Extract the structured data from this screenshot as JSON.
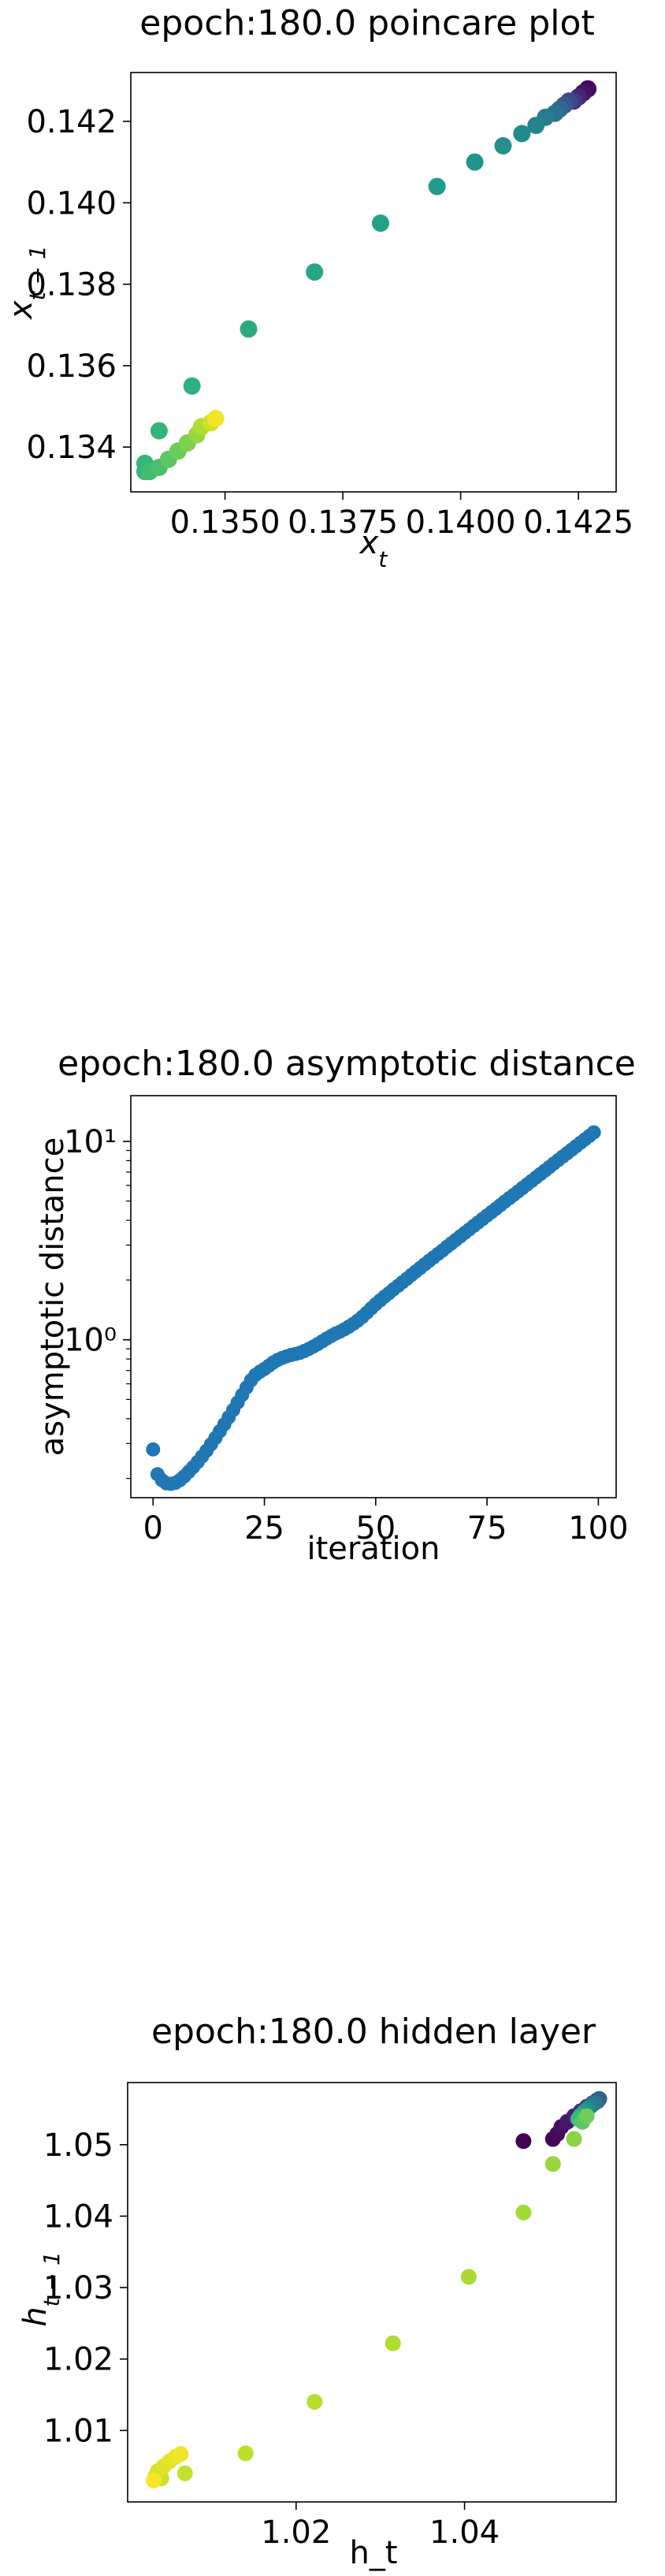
{
  "chart_data": [
    {
      "type": "scatter",
      "title": "epoch:180.0 poincare plot",
      "xlabel": "x_t",
      "ylabel": "x_{t-1}",
      "xlim": [
        0.133,
        0.1433
      ],
      "ylim": [
        0.1329,
        0.1432
      ],
      "xticks": [
        0.135,
        0.1375,
        0.14,
        0.1425
      ],
      "xtick_labels": [
        "0.1350",
        "0.1375",
        "0.1400",
        "0.1425"
      ],
      "yticks": [
        0.134,
        0.136,
        0.138,
        0.14,
        0.142
      ],
      "ytick_labels": [
        "0.134",
        "0.136",
        "0.138",
        "0.140",
        "0.142"
      ],
      "colormap": "viridis",
      "points": [
        {
          "x": 0.1427,
          "y": 0.1428,
          "c": 0.02
        },
        {
          "x": 0.1426,
          "y": 0.1427,
          "c": 0.05
        },
        {
          "x": 0.1425,
          "y": 0.1426,
          "c": 0.1
        },
        {
          "x": 0.1424,
          "y": 0.1425,
          "c": 0.16
        },
        {
          "x": 0.1423,
          "y": 0.1425,
          "c": 0.22
        },
        {
          "x": 0.1422,
          "y": 0.1424,
          "c": 0.28
        },
        {
          "x": 0.1421,
          "y": 0.1423,
          "c": 0.33
        },
        {
          "x": 0.142,
          "y": 0.1422,
          "c": 0.38
        },
        {
          "x": 0.1418,
          "y": 0.1421,
          "c": 0.42
        },
        {
          "x": 0.1416,
          "y": 0.1419,
          "c": 0.45
        },
        {
          "x": 0.1413,
          "y": 0.1417,
          "c": 0.48
        },
        {
          "x": 0.1409,
          "y": 0.1414,
          "c": 0.5
        },
        {
          "x": 0.1403,
          "y": 0.141,
          "c": 0.52
        },
        {
          "x": 0.1395,
          "y": 0.1404,
          "c": 0.55
        },
        {
          "x": 0.1383,
          "y": 0.1395,
          "c": 0.57
        },
        {
          "x": 0.1369,
          "y": 0.1383,
          "c": 0.59
        },
        {
          "x": 0.1355,
          "y": 0.1369,
          "c": 0.61
        },
        {
          "x": 0.1343,
          "y": 0.1355,
          "c": 0.63
        },
        {
          "x": 0.1336,
          "y": 0.1344,
          "c": 0.65
        },
        {
          "x": 0.1333,
          "y": 0.1336,
          "c": 0.66
        },
        {
          "x": 0.1333,
          "y": 0.1334,
          "c": 0.67
        },
        {
          "x": 0.1334,
          "y": 0.1334,
          "c": 0.69
        },
        {
          "x": 0.1336,
          "y": 0.1335,
          "c": 0.71
        },
        {
          "x": 0.1338,
          "y": 0.1337,
          "c": 0.74
        },
        {
          "x": 0.134,
          "y": 0.1339,
          "c": 0.77
        },
        {
          "x": 0.1342,
          "y": 0.1341,
          "c": 0.8
        },
        {
          "x": 0.1344,
          "y": 0.1343,
          "c": 0.84
        },
        {
          "x": 0.1345,
          "y": 0.1345,
          "c": 0.88
        },
        {
          "x": 0.1347,
          "y": 0.1346,
          "c": 0.93
        },
        {
          "x": 0.1348,
          "y": 0.1347,
          "c": 0.98
        }
      ]
    },
    {
      "type": "scatter",
      "title": "epoch:180.0 asymptotic distance",
      "xlabel": "iteration",
      "ylabel": "asymptotic distance",
      "yscale": "log",
      "xlim": [
        -5,
        104
      ],
      "ylim": [
        0.16,
        17
      ],
      "xticks": [
        0,
        25,
        50,
        75,
        100
      ],
      "xtick_labels": [
        "0",
        "25",
        "50",
        "75",
        "100"
      ],
      "yticks": [
        1,
        10
      ],
      "ytick_labels": [
        "10⁰",
        "10¹"
      ],
      "color": "#1f77b4",
      "x": [
        0,
        1,
        2,
        3,
        4,
        5,
        6,
        7,
        8,
        9,
        10,
        11,
        12,
        13,
        14,
        15,
        16,
        17,
        18,
        19,
        20,
        21,
        22,
        23,
        24,
        25,
        26,
        27,
        28,
        29,
        30,
        31,
        32,
        33,
        34,
        35,
        36,
        37,
        38,
        39,
        40,
        41,
        42,
        43,
        44,
        45,
        46,
        47,
        48,
        49,
        50,
        51,
        52,
        53,
        54,
        55,
        56,
        57,
        58,
        59,
        60,
        61,
        62,
        63,
        64,
        65,
        66,
        67,
        68,
        69,
        70,
        71,
        72,
        73,
        74,
        75,
        76,
        77,
        78,
        79,
        80,
        81,
        82,
        83,
        84,
        85,
        86,
        87,
        88,
        89,
        90,
        91,
        92,
        93,
        94,
        95,
        96,
        97,
        98,
        99
      ],
      "y": [
        0.28,
        0.21,
        0.196,
        0.189,
        0.188,
        0.19,
        0.196,
        0.205,
        0.216,
        0.228,
        0.242,
        0.258,
        0.276,
        0.297,
        0.32,
        0.346,
        0.375,
        0.407,
        0.443,
        0.483,
        0.527,
        0.575,
        0.625,
        0.665,
        0.69,
        0.712,
        0.74,
        0.768,
        0.792,
        0.81,
        0.825,
        0.838,
        0.848,
        0.86,
        0.878,
        0.9,
        0.924,
        0.952,
        0.983,
        1.015,
        1.045,
        1.075,
        1.1,
        1.13,
        1.165,
        1.205,
        1.25,
        1.305,
        1.37,
        1.44,
        1.51,
        1.58,
        1.65,
        1.72,
        1.795,
        1.87,
        1.95,
        2.03,
        2.12,
        2.21,
        2.3,
        2.4,
        2.5,
        2.6,
        2.71,
        2.82,
        2.94,
        3.06,
        3.19,
        3.32,
        3.46,
        3.6,
        3.75,
        3.9,
        4.06,
        4.23,
        4.4,
        4.58,
        4.77,
        4.97,
        5.17,
        5.38,
        5.6,
        5.83,
        6.07,
        6.32,
        6.58,
        6.85,
        7.13,
        7.42,
        7.73,
        8.05,
        8.38,
        8.72,
        9.08,
        9.45,
        9.84,
        10.24,
        10.66,
        11.1
      ]
    },
    {
      "type": "scatter",
      "title": "epoch:180.0 hidden layer",
      "xlabel": "h_t",
      "ylabel": "h_{t-1}",
      "xlim": [
        1.0,
        1.058
      ],
      "ylim": [
        1.0,
        1.0587
      ],
      "xticks": [
        1.02,
        1.04
      ],
      "xtick_labels": [
        "1.02",
        "1.04"
      ],
      "yticks": [
        1.01,
        1.02,
        1.03,
        1.04,
        1.05
      ],
      "ytick_labels": [
        "1.01",
        "1.02",
        "1.03",
        "1.04",
        "1.05"
      ],
      "colormap": "viridis",
      "points": [
        {
          "x": 1.047,
          "y": 1.0505,
          "c": 0.0
        },
        {
          "x": 1.0505,
          "y": 1.0508,
          "c": 0.01
        },
        {
          "x": 1.051,
          "y": 1.0515,
          "c": 0.02
        },
        {
          "x": 1.0515,
          "y": 1.0525,
          "c": 0.04
        },
        {
          "x": 1.0522,
          "y": 1.0532,
          "c": 0.06
        },
        {
          "x": 1.053,
          "y": 1.054,
          "c": 0.09
        },
        {
          "x": 1.0538,
          "y": 1.0547,
          "c": 0.13
        },
        {
          "x": 1.0545,
          "y": 1.0553,
          "c": 0.17
        },
        {
          "x": 1.0552,
          "y": 1.0558,
          "c": 0.21
        },
        {
          "x": 1.0557,
          "y": 1.0562,
          "c": 0.25
        },
        {
          "x": 1.056,
          "y": 1.0564,
          "c": 0.29
        },
        {
          "x": 1.0558,
          "y": 1.0561,
          "c": 0.33
        },
        {
          "x": 1.0554,
          "y": 1.0558,
          "c": 0.38
        },
        {
          "x": 1.055,
          "y": 1.0554,
          "c": 0.43
        },
        {
          "x": 1.0546,
          "y": 1.055,
          "c": 0.49
        },
        {
          "x": 1.0542,
          "y": 1.0546,
          "c": 0.55
        },
        {
          "x": 1.0538,
          "y": 1.0541,
          "c": 0.62
        },
        {
          "x": 1.0535,
          "y": 1.0536,
          "c": 0.68
        },
        {
          "x": 1.054,
          "y": 1.0532,
          "c": 0.74
        },
        {
          "x": 1.0545,
          "y": 1.054,
          "c": 0.78
        },
        {
          "x": 1.053,
          "y": 1.0508,
          "c": 0.82
        },
        {
          "x": 1.0505,
          "y": 1.0473,
          "c": 0.84
        },
        {
          "x": 1.047,
          "y": 1.0405,
          "c": 0.86
        },
        {
          "x": 1.0405,
          "y": 1.0315,
          "c": 0.87
        },
        {
          "x": 1.0315,
          "y": 1.0222,
          "c": 0.88
        },
        {
          "x": 1.0222,
          "y": 1.014,
          "c": 0.89
        },
        {
          "x": 1.014,
          "y": 1.0068,
          "c": 0.9
        },
        {
          "x": 1.0068,
          "y": 1.004,
          "c": 0.91
        },
        {
          "x": 1.004,
          "y": 1.0033,
          "c": 0.92
        },
        {
          "x": 1.0033,
          "y": 1.0036,
          "c": 0.93
        },
        {
          "x": 1.0036,
          "y": 1.0043,
          "c": 0.94
        },
        {
          "x": 1.0043,
          "y": 1.005,
          "c": 0.95
        },
        {
          "x": 1.005,
          "y": 1.0057,
          "c": 0.96
        },
        {
          "x": 1.0057,
          "y": 1.0063,
          "c": 0.97
        },
        {
          "x": 1.0063,
          "y": 1.0067,
          "c": 0.98
        },
        {
          "x": 1.0031,
          "y": 1.003,
          "c": 0.99
        }
      ]
    }
  ]
}
